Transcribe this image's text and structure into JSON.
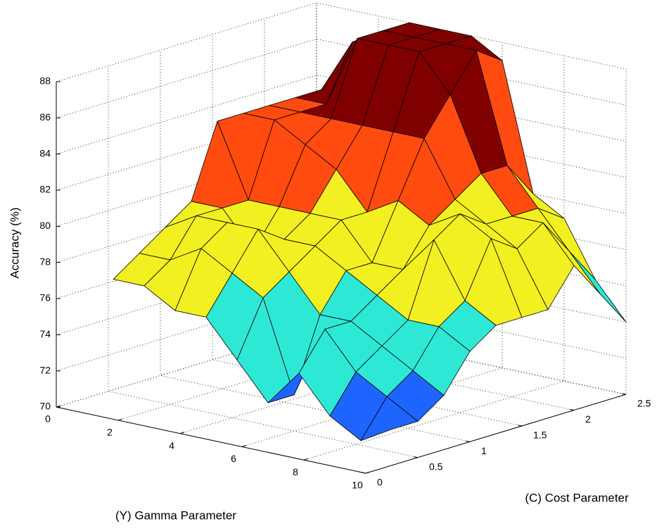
{
  "chart_data": {
    "type": "surface",
    "xlabel": "(Y) Gamma Parameter",
    "ylabel": "(C) Cost Parameter",
    "zlabel": "Accuracy (%)",
    "x": [
      1,
      2,
      3,
      4,
      5,
      6,
      7,
      8,
      9,
      10
    ],
    "y": [
      0.25,
      0.5,
      0.75,
      1,
      1.25,
      1.5,
      1.75,
      2,
      2.25,
      2.5
    ],
    "z": [
      [
        77,
        78,
        79,
        80,
        84,
        84,
        84,
        84,
        84,
        84
      ],
      [
        77,
        78,
        80,
        80,
        80,
        84,
        84,
        84,
        87,
        87
      ],
      [
        76,
        79,
        80,
        78,
        80,
        83,
        84,
        88,
        88,
        88
      ],
      [
        76,
        78,
        80,
        79,
        80,
        82,
        84,
        88,
        88,
        88
      ],
      [
        74,
        77,
        78,
        79,
        80,
        80,
        84,
        88,
        88,
        88
      ],
      [
        72,
        72,
        76,
        78,
        78,
        81,
        84,
        86,
        88,
        87
      ],
      [
        74,
        76,
        76,
        77,
        78,
        80,
        81,
        82,
        82,
        80
      ],
      [
        72,
        74,
        75,
        76,
        80,
        81,
        80,
        80,
        80,
        79
      ],
      [
        71,
        73,
        74,
        76,
        77,
        80,
        79,
        80,
        78,
        76
      ],
      [
        72,
        72,
        73,
        75,
        76,
        76,
        76,
        78,
        76,
        74
      ]
    ],
    "xlim": [
      0,
      10
    ],
    "xticks": [
      0,
      2,
      4,
      6,
      8,
      10
    ],
    "ylim": [
      0,
      2.5
    ],
    "yticks": [
      0,
      0.5,
      1,
      1.5,
      2,
      2.5
    ],
    "zlim": [
      70,
      88
    ],
    "zticks": [
      70,
      72,
      74,
      76,
      78,
      80,
      82,
      84,
      86,
      88
    ],
    "grid": true,
    "colormap": [
      "#1e64ff",
      "#2ee8d6",
      "#f2f020",
      "#ff4a10",
      "#800000"
    ]
  }
}
